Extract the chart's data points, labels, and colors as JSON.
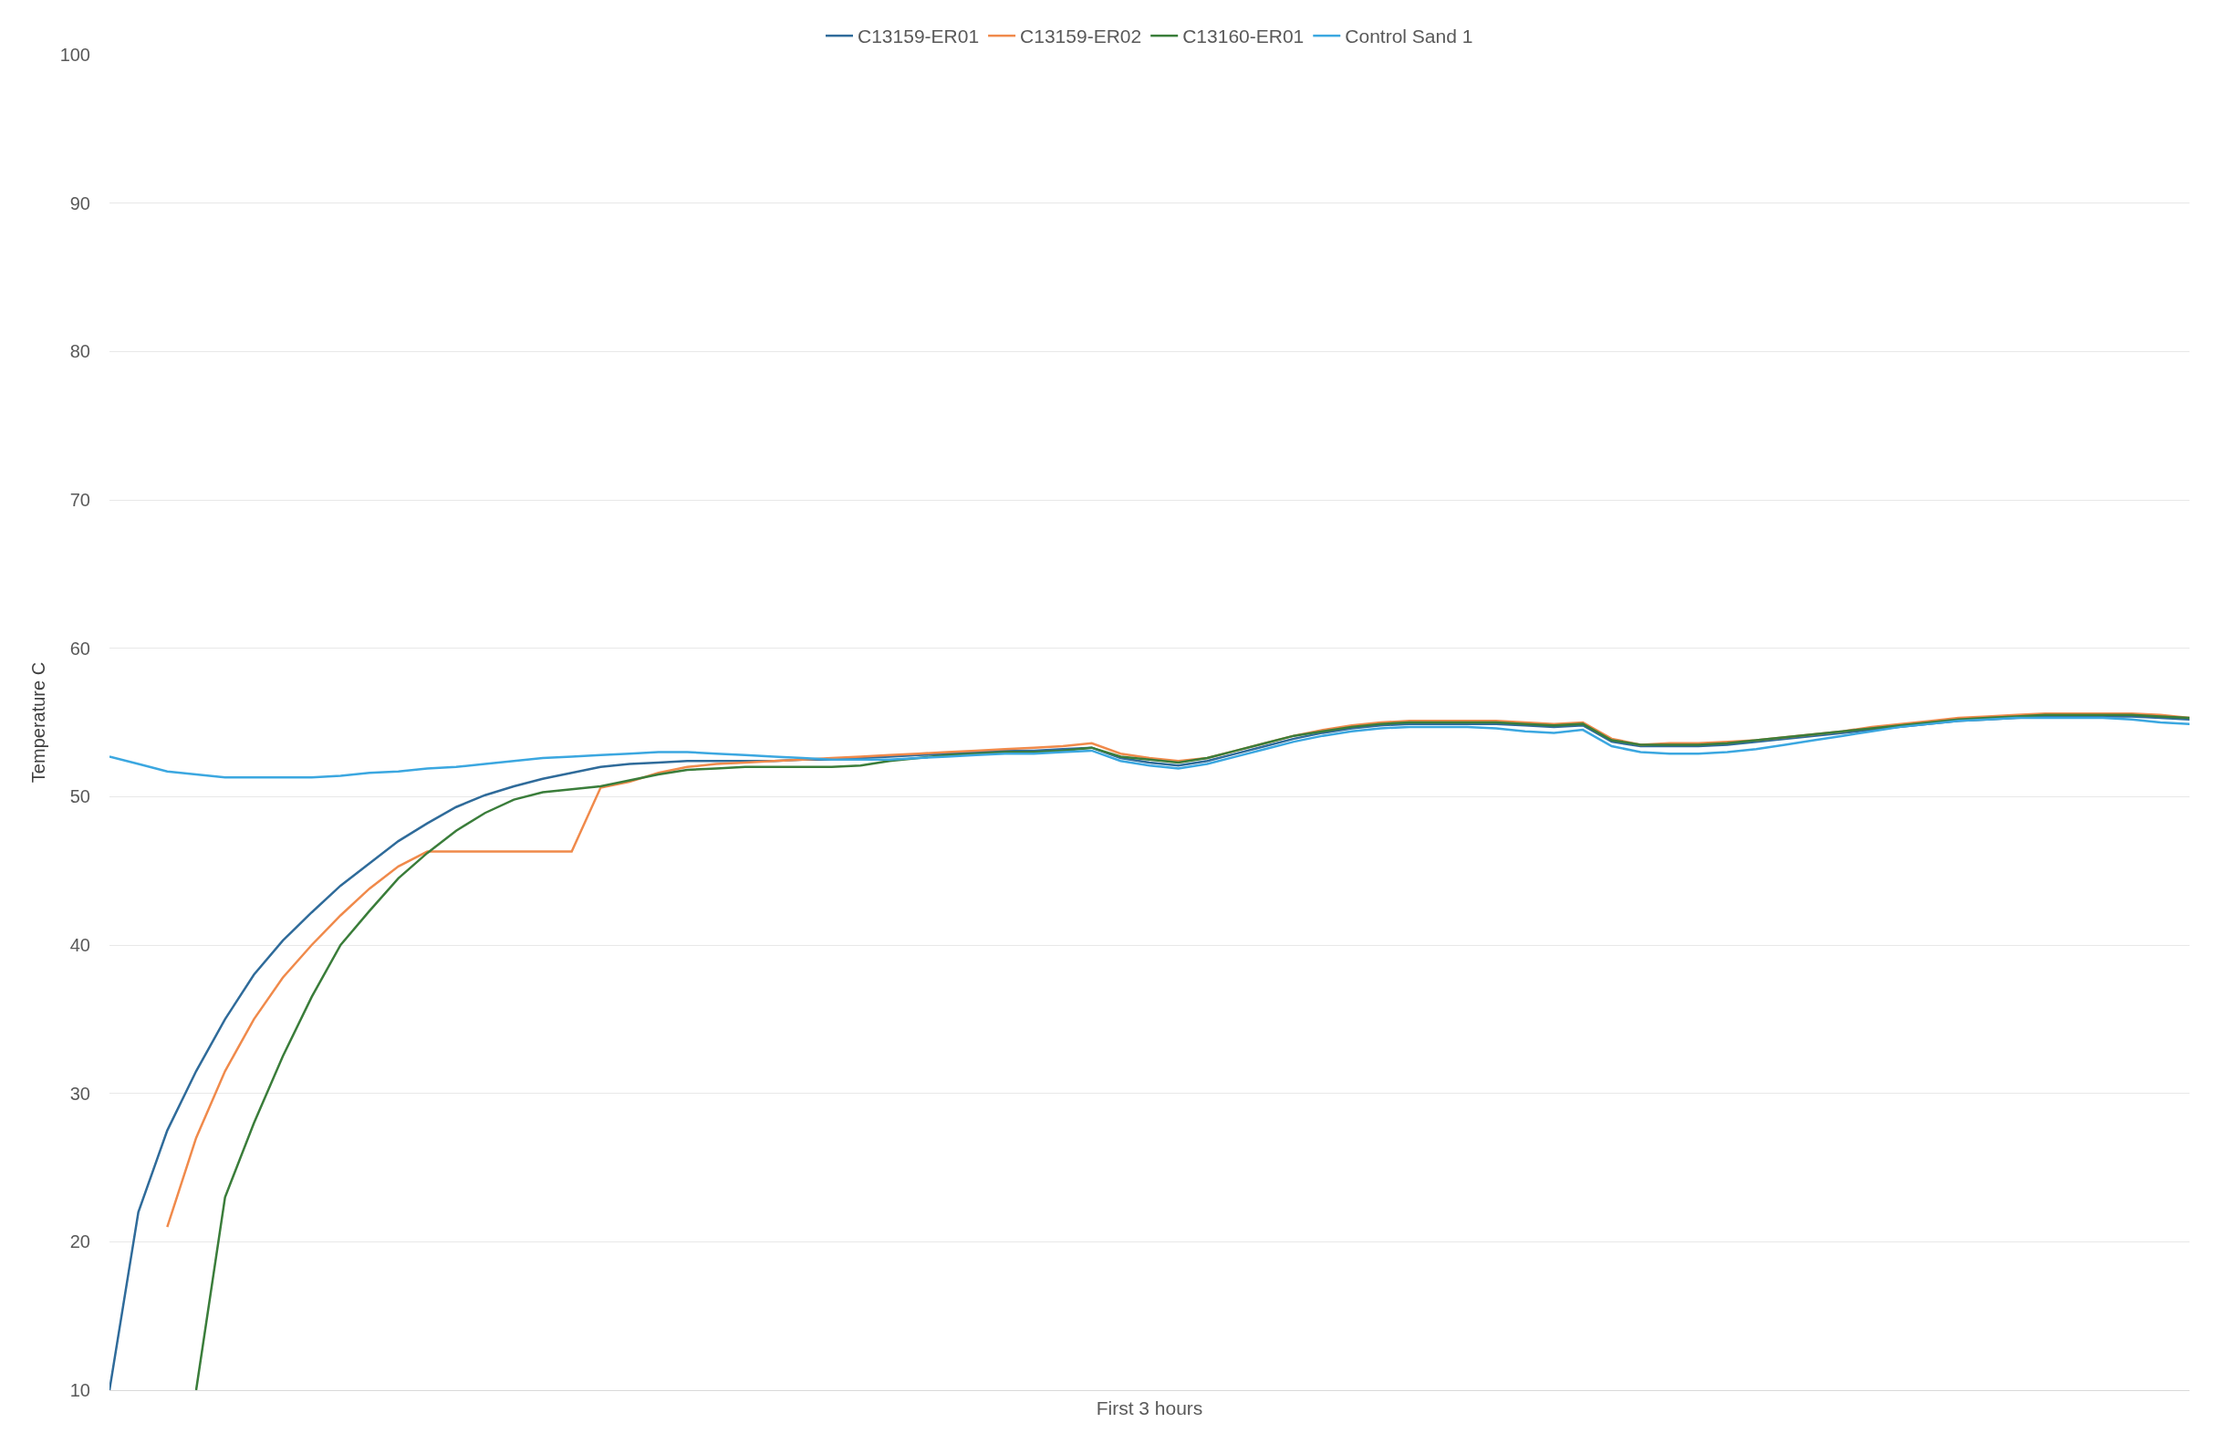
{
  "chart_data": {
    "type": "line",
    "xlabel": "First 3 hours",
    "ylabel": "Temperature C",
    "categories": [
      null,
      null,
      null,
      null,
      null,
      null,
      null,
      null,
      null,
      null,
      null,
      null,
      null,
      null,
      null,
      null,
      null,
      null,
      null,
      null,
      null,
      null,
      null,
      null,
      null,
      null,
      null,
      null,
      null,
      null,
      null,
      null,
      null,
      null,
      null,
      null,
      null,
      null,
      null,
      null,
      null,
      null,
      null,
      null,
      null,
      null,
      null,
      null,
      null,
      null,
      null,
      null,
      null,
      null,
      null,
      null,
      null,
      null,
      null,
      null,
      null,
      null,
      null,
      null,
      null,
      null,
      null,
      null,
      null,
      null,
      null,
      null,
      null
    ],
    "ylim": [
      10,
      100
    ],
    "yticks": [
      10,
      20,
      30,
      40,
      50,
      60,
      70,
      80,
      90,
      100
    ],
    "grid": "y",
    "legend": "top",
    "marker": "none",
    "line_style": "solid",
    "series": [
      {
        "name": "C13159-ER01",
        "color": "#2f6b9a",
        "values": [
          10,
          22,
          27.5,
          31.5,
          35,
          38,
          40.3,
          42.2,
          44,
          45.5,
          47,
          48.2,
          49.3,
          50.1,
          50.7,
          51.2,
          51.6,
          52,
          52.2,
          52.3,
          52.4,
          52.4,
          52.4,
          52.4,
          52.5,
          52.5,
          52.6,
          52.7,
          52.8,
          52.9,
          53.0,
          53.1,
          53.1,
          53.2,
          53.3,
          52.6,
          52.3,
          52.1,
          52.4,
          52.9,
          53.4,
          53.9,
          54.3,
          54.6,
          54.8,
          54.9,
          54.9,
          54.9,
          54.9,
          54.8,
          54.7,
          54.8,
          53.7,
          53.4,
          53.4,
          53.4,
          53.5,
          53.7,
          53.9,
          54.1,
          54.3,
          54.5,
          54.7,
          54.9,
          55.1,
          55.2,
          55.3,
          55.4,
          55.4,
          55.4,
          55.4,
          55.3,
          55.2
        ]
      },
      {
        "name": "C13159-ER02",
        "color": "#f08a4b",
        "values": [
          null,
          null,
          21,
          27,
          31.5,
          35,
          37.8,
          40,
          42,
          43.8,
          45.3,
          46.3,
          46.3,
          46.3,
          46.3,
          46.3,
          46.3,
          50.6,
          51,
          51.6,
          52,
          52.2,
          52.3,
          52.4,
          52.5,
          52.6,
          52.7,
          52.8,
          52.9,
          53.0,
          53.1,
          53.2,
          53.3,
          53.4,
          53.6,
          52.9,
          52.6,
          52.4,
          52.6,
          53.1,
          53.6,
          54.1,
          54.5,
          54.8,
          55.0,
          55.1,
          55.1,
          55.1,
          55.1,
          55.0,
          54.9,
          55.0,
          53.9,
          53.5,
          53.6,
          53.6,
          53.7,
          53.8,
          54.0,
          54.2,
          54.4,
          54.7,
          54.9,
          55.1,
          55.3,
          55.4,
          55.5,
          55.6,
          55.6,
          55.6,
          55.6,
          55.5,
          55.3
        ]
      },
      {
        "name": "C13160-ER01",
        "color": "#3a7d3a",
        "values": [
          null,
          null,
          null,
          10,
          23,
          28,
          32.5,
          36.5,
          40,
          42.3,
          44.5,
          46.2,
          47.7,
          48.9,
          49.8,
          50.3,
          50.5,
          50.7,
          51.1,
          51.5,
          51.8,
          51.9,
          52.0,
          52.0,
          52.0,
          52.0,
          52.1,
          52.4,
          52.6,
          52.8,
          52.9,
          53.0,
          53.0,
          53.1,
          53.3,
          52.7,
          52.5,
          52.3,
          52.6,
          53.1,
          53.6,
          54.1,
          54.4,
          54.7,
          54.9,
          55.0,
          55.0,
          55.0,
          55.0,
          54.9,
          54.8,
          54.9,
          53.8,
          53.5,
          53.5,
          53.5,
          53.6,
          53.8,
          54.0,
          54.2,
          54.4,
          54.6,
          54.8,
          55.0,
          55.2,
          55.3,
          55.4,
          55.5,
          55.5,
          55.5,
          55.5,
          55.4,
          55.3
        ]
      },
      {
        "name": "Control Sand 1",
        "color": "#3ba7e0",
        "values": [
          52.7,
          52.2,
          51.7,
          51.5,
          51.3,
          51.3,
          51.3,
          51.3,
          51.4,
          51.6,
          51.7,
          51.9,
          52.0,
          52.2,
          52.4,
          52.6,
          52.7,
          52.8,
          52.9,
          53.0,
          53.0,
          52.9,
          52.8,
          52.7,
          52.6,
          52.5,
          52.5,
          52.5,
          52.6,
          52.7,
          52.8,
          52.9,
          52.9,
          53.0,
          53.1,
          52.4,
          52.1,
          51.9,
          52.2,
          52.7,
          53.2,
          53.7,
          54.1,
          54.4,
          54.6,
          54.7,
          54.7,
          54.7,
          54.6,
          54.4,
          54.3,
          54.5,
          53.4,
          53.0,
          52.9,
          52.9,
          53.0,
          53.2,
          53.5,
          53.8,
          54.1,
          54.4,
          54.7,
          54.9,
          55.1,
          55.2,
          55.3,
          55.3,
          55.3,
          55.3,
          55.2,
          55.0,
          54.9
        ]
      }
    ]
  }
}
